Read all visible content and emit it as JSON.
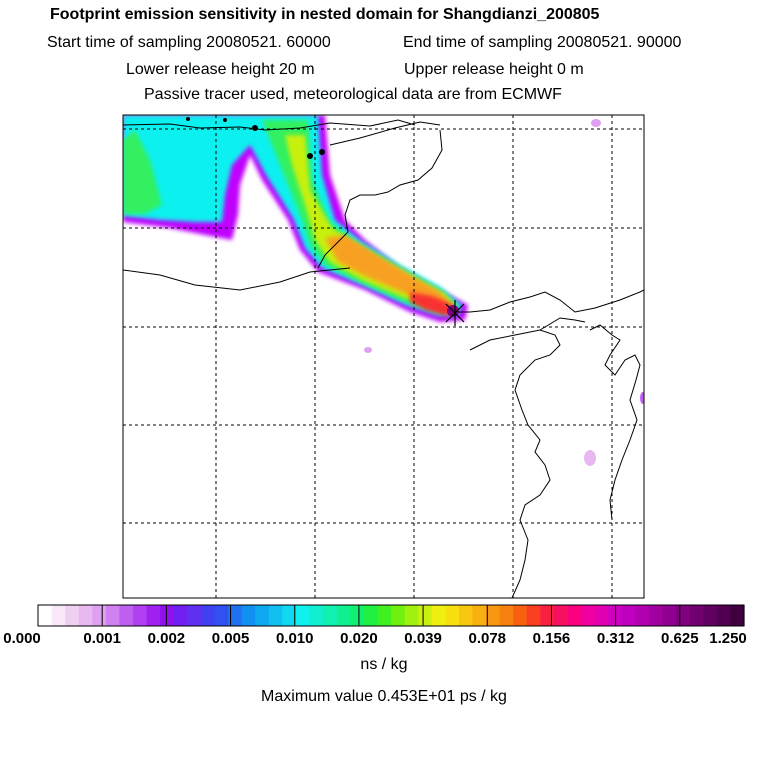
{
  "header": {
    "title": "Footprint emission sensitivity in nested domain for Shangdianzi_200805",
    "start_time": "Start time of sampling 20080521. 60000",
    "end_time": "End time of sampling 20080521. 90000",
    "lower_height": "Lower release height   20 m",
    "upper_height": "Upper release height    0 m",
    "tracer_note": "Passive tracer used, meteorological data are from ECMWF"
  },
  "colorbar": {
    "ticks": [
      "0.000",
      "0.001",
      "0.002",
      "0.005",
      "0.010",
      "0.020",
      "0.039",
      "0.078",
      "0.156",
      "0.312",
      "0.625",
      "1.250"
    ],
    "unit": "ns / kg",
    "colors": [
      "#ffffff",
      "#f8e8f8",
      "#f0d0f0",
      "#e8b8f0",
      "#e0a0f0",
      "#d080f0",
      "#c060f0",
      "#b040f0",
      "#a020f0",
      "#9010f0",
      "#7020f0",
      "#6030f0",
      "#4040f0",
      "#3050f0",
      "#2070f0",
      "#1090f0",
      "#10a8f0",
      "#10c0f0",
      "#10d8f0",
      "#10f0f0",
      "#10f0d0",
      "#10f0b0",
      "#10f090",
      "#10f070",
      "#20f040",
      "#40f020",
      "#70f010",
      "#a0f010",
      "#c8f010",
      "#f0f010",
      "#f8e010",
      "#f8c810",
      "#f8b010",
      "#f89810",
      "#f88010",
      "#f86010",
      "#f84020",
      "#f82040",
      "#f81060",
      "#f80080",
      "#f000a0",
      "#e000b0",
      "#d000c0",
      "#c000c0",
      "#b000b0",
      "#a000a0",
      "#900090",
      "#800080",
      "#700070",
      "#600060",
      "#500050",
      "#400040"
    ]
  },
  "footer": {
    "max_value": "Maximum value  0.453E+01 ps / kg"
  },
  "map": {
    "receptor_marker": "x-cross-icon",
    "colors": {
      "magenta": "#c000ff",
      "cyan": "#10f0f0",
      "green": "#30f060",
      "yellow": "#c8f010",
      "orange": "#f8a020",
      "red": "#f83030",
      "dark": "#700070"
    }
  }
}
